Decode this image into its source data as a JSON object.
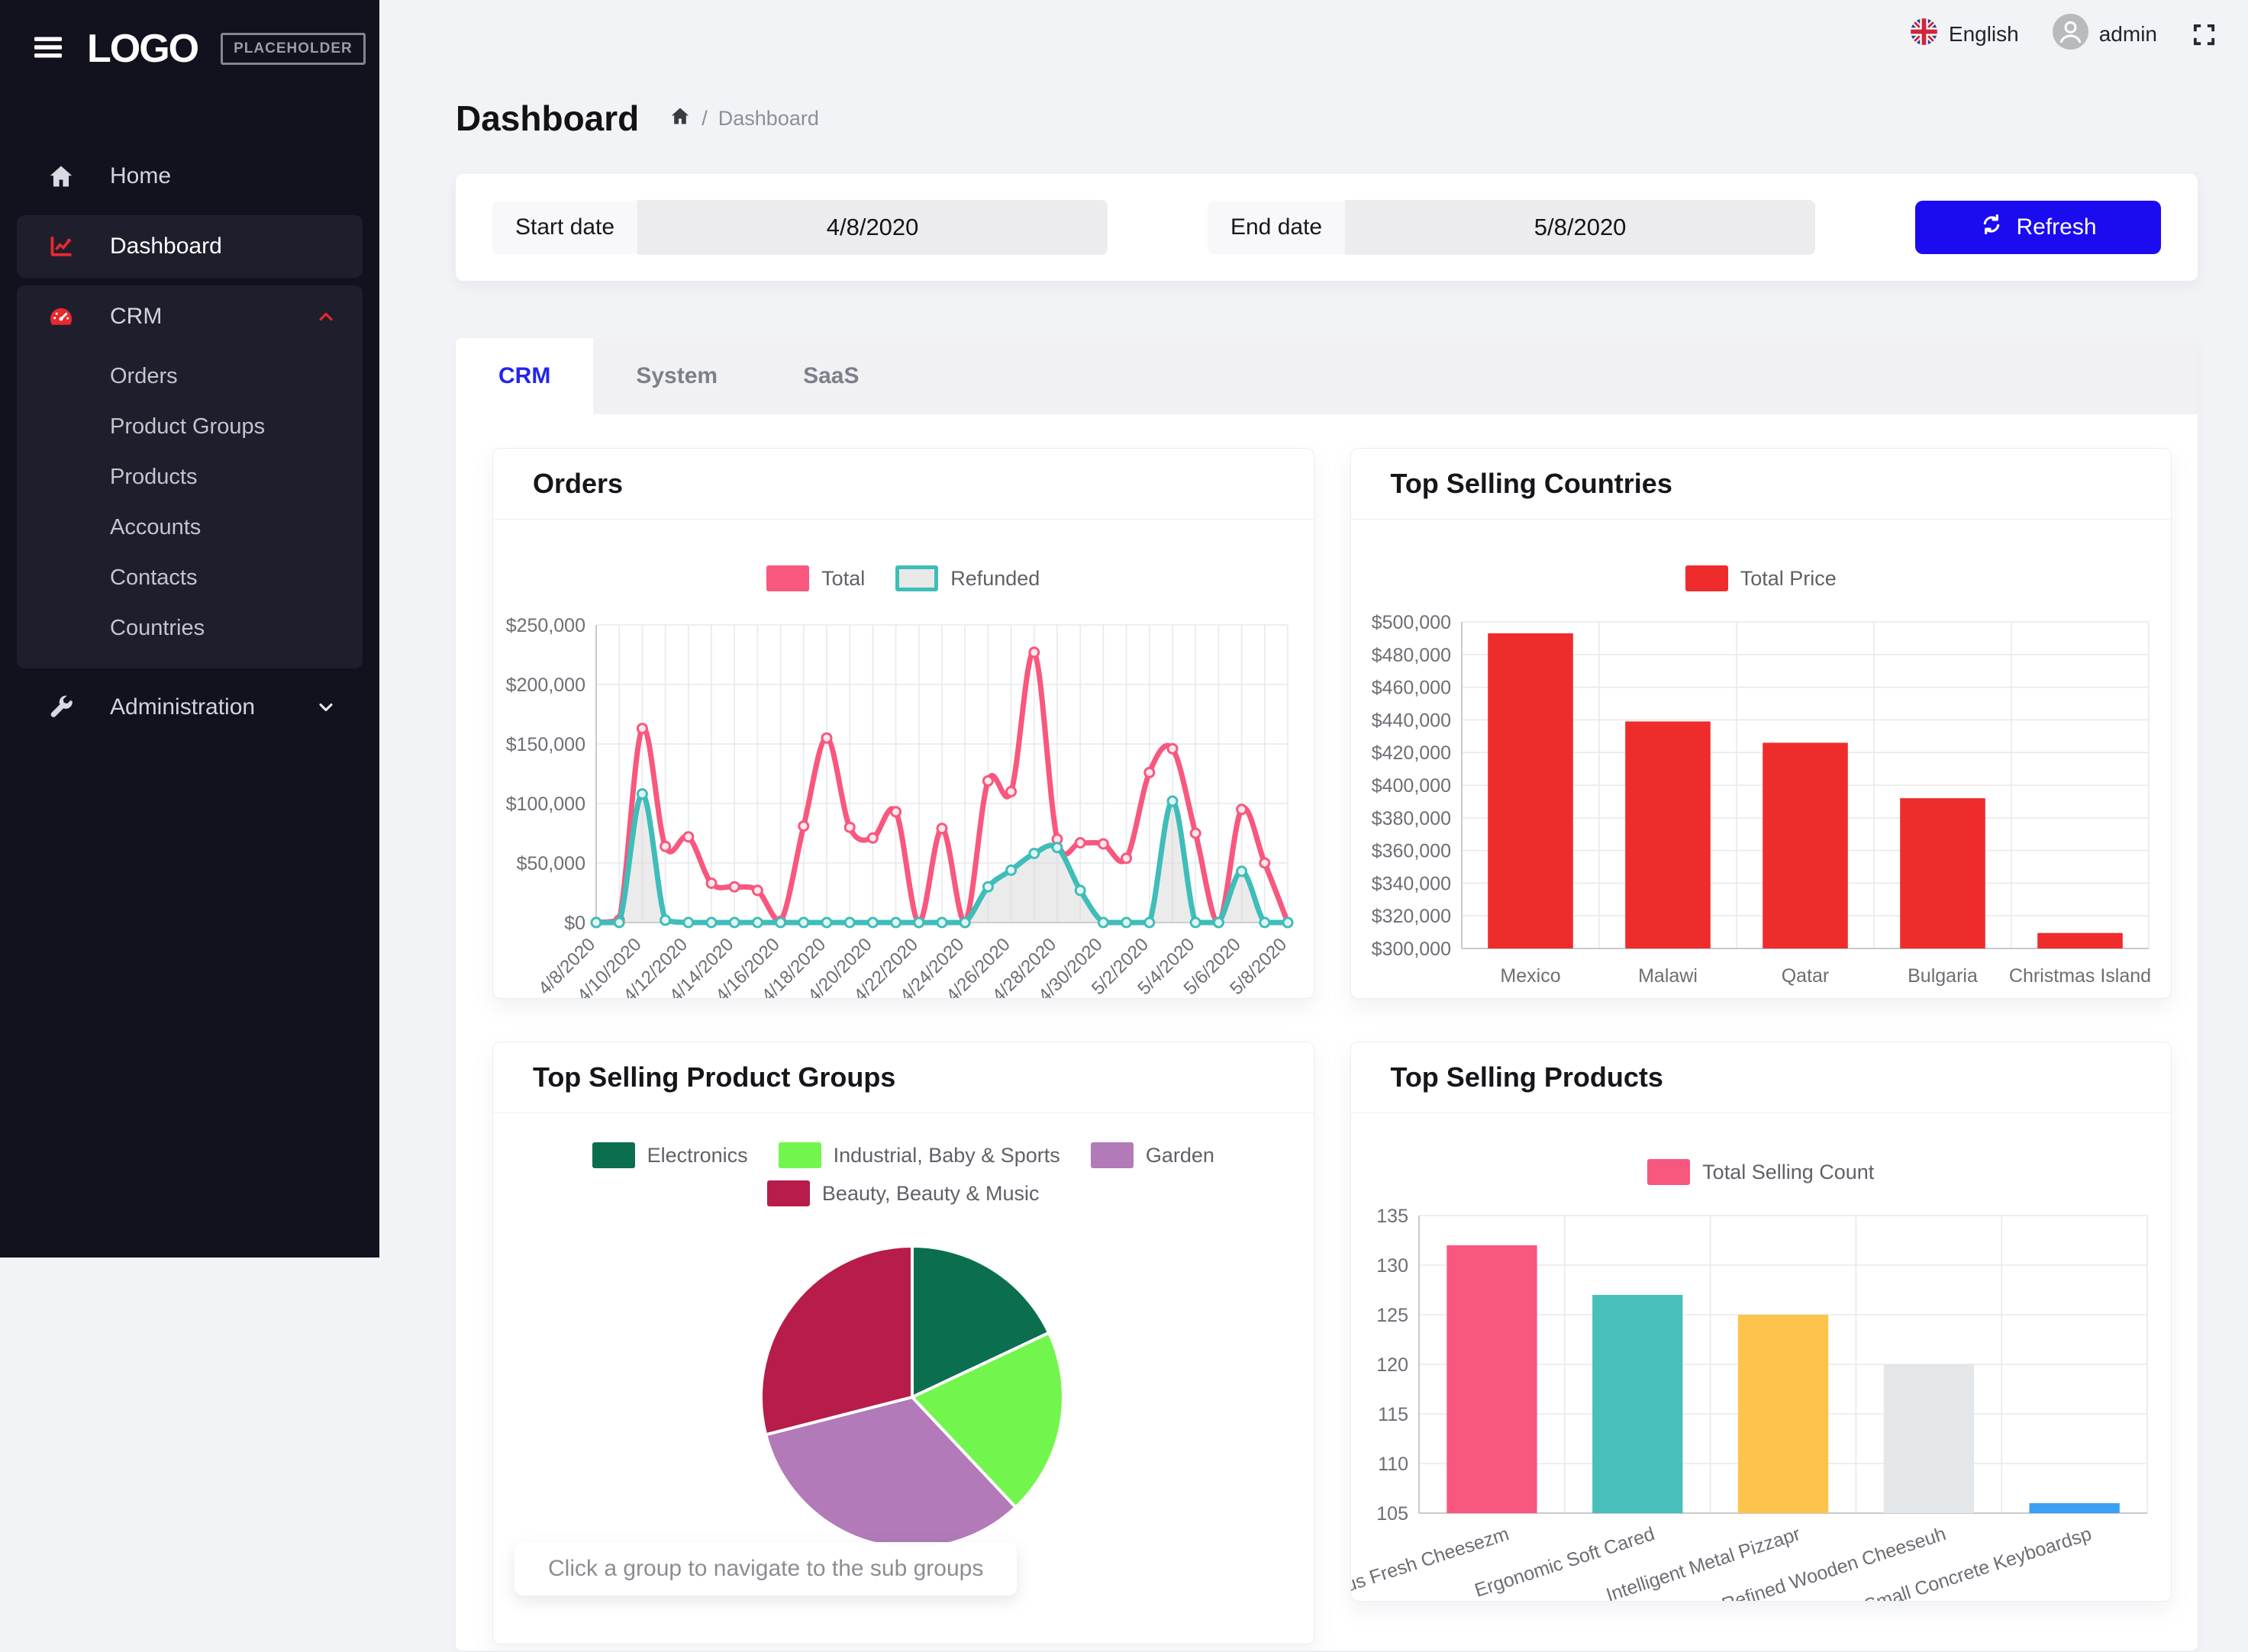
{
  "topbar": {
    "language": "English",
    "username": "admin"
  },
  "sidebar": {
    "logo": "LOGO",
    "logo_badge": "PLACEHOLDER",
    "items": [
      {
        "id": "home",
        "label": "Home",
        "icon": "home"
      },
      {
        "id": "dashboard",
        "label": "Dashboard",
        "icon": "chart-line",
        "active": true
      },
      {
        "id": "crm",
        "label": "CRM",
        "icon": "gauge",
        "expanded": true,
        "children": [
          {
            "id": "orders",
            "label": "Orders"
          },
          {
            "id": "product-groups",
            "label": "Product Groups"
          },
          {
            "id": "products",
            "label": "Products"
          },
          {
            "id": "accounts",
            "label": "Accounts"
          },
          {
            "id": "contacts",
            "label": "Contacts"
          },
          {
            "id": "countries",
            "label": "Countries"
          }
        ]
      },
      {
        "id": "administration",
        "label": "Administration",
        "icon": "wrench",
        "expandable": true,
        "expanded": false
      }
    ]
  },
  "page": {
    "title": "Dashboard",
    "breadcrumb_separator": "/",
    "breadcrumb_current": "Dashboard"
  },
  "filters": {
    "start_label": "Start date",
    "start_value": "4/8/2020",
    "end_label": "End date",
    "end_value": "5/8/2020",
    "refresh_label": "Refresh"
  },
  "tabs": [
    {
      "id": "crm",
      "label": "CRM",
      "active": true
    },
    {
      "id": "system",
      "label": "System",
      "active": false
    },
    {
      "id": "saas",
      "label": "SaaS",
      "active": false
    }
  ],
  "colors": {
    "accent_blue": "#1b0bf0",
    "tab_active_blue": "#2424ee",
    "sidebar_red": "#e8282f",
    "page_bg": "#f2f3f6"
  },
  "chart_data": [
    {
      "id": "orders",
      "type": "line",
      "title": "Orders",
      "x": [
        "4/8/2020",
        "4/9/2020",
        "4/10/2020",
        "4/11/2020",
        "4/12/2020",
        "4/13/2020",
        "4/14/2020",
        "4/15/2020",
        "4/16/2020",
        "4/17/2020",
        "4/18/2020",
        "4/19/2020",
        "4/20/2020",
        "4/21/2020",
        "4/22/2020",
        "4/23/2020",
        "4/24/2020",
        "4/25/2020",
        "4/26/2020",
        "4/27/2020",
        "4/28/2020",
        "4/29/2020",
        "4/30/2020",
        "5/1/2020",
        "5/2/2020",
        "5/3/2020",
        "5/4/2020",
        "5/5/2020",
        "5/6/2020",
        "5/7/2020",
        "5/8/2020"
      ],
      "tick_every": 2,
      "ylim": [
        0,
        250000
      ],
      "ystep": 50000,
      "yprefix": "$",
      "grid": true,
      "legend_position": "top",
      "series": [
        {
          "name": "Total",
          "color": "#f8577e",
          "values": [
            0,
            2000,
            163000,
            64000,
            72000,
            33000,
            30000,
            27000,
            1000,
            81000,
            155000,
            80000,
            71000,
            93000,
            0,
            79000,
            0,
            119000,
            110000,
            227000,
            70000,
            67000,
            66000,
            54000,
            126000,
            146000,
            75000,
            0,
            95000,
            50000,
            0
          ]
        },
        {
          "name": "Refunded",
          "color": "#3fbdb9",
          "fill": "#d8d8d8",
          "fill_opacity": 0.5,
          "values": [
            0,
            0,
            108000,
            2000,
            0,
            0,
            0,
            0,
            0,
            0,
            0,
            0,
            0,
            0,
            0,
            0,
            0,
            30000,
            44000,
            58000,
            63000,
            27000,
            0,
            0,
            0,
            102000,
            0,
            0,
            43000,
            0,
            0
          ]
        }
      ]
    },
    {
      "id": "countries",
      "type": "bar",
      "title": "Top Selling Countries",
      "legend": "Total Price",
      "color": "#ee2c2c",
      "categories": [
        "Mexico",
        "Malawi",
        "Qatar",
        "Bulgaria",
        "Christmas Island"
      ],
      "values": [
        493000,
        439000,
        426000,
        392000,
        309500
      ],
      "ylim": [
        300000,
        500000
      ],
      "ystep": 20000,
      "yprefix": "$",
      "grid": true
    },
    {
      "id": "groups",
      "type": "pie",
      "title": "Top Selling Product Groups",
      "labels": [
        "Electronics",
        "Industrial, Baby & Sports",
        "Garden",
        "Beauty, Beauty & Music"
      ],
      "values": [
        18,
        20,
        33,
        29
      ],
      "unit": "percent",
      "colors": [
        "#0b6f4f",
        "#72f64d",
        "#b27ab8",
        "#b71c4b"
      ],
      "legend_rows": [
        [
          0,
          1,
          2
        ],
        [
          3
        ]
      ],
      "note": "Click a group to navigate to the sub groups"
    },
    {
      "id": "products",
      "type": "bar",
      "title": "Top Selling Products",
      "legend": "Total Selling Count",
      "legend_color": "#f8577e",
      "colors": [
        "#f8577e",
        "#48bfba",
        "#fdc44d",
        "#e4e7ea",
        "#3aa0f4"
      ],
      "categories": [
        "Gorgeous Fresh Cheesezm",
        "Ergonomic Soft Cared",
        "Intelligent Metal Pizzapr",
        "Refined Wooden Cheeseuh",
        "Small Concrete Keyboardsp"
      ],
      "values": [
        132,
        127,
        125,
        120,
        106
      ],
      "ylim": [
        105,
        135
      ],
      "ystep": 5,
      "yprefix": "",
      "label_rotate": -18,
      "grid": true
    }
  ]
}
